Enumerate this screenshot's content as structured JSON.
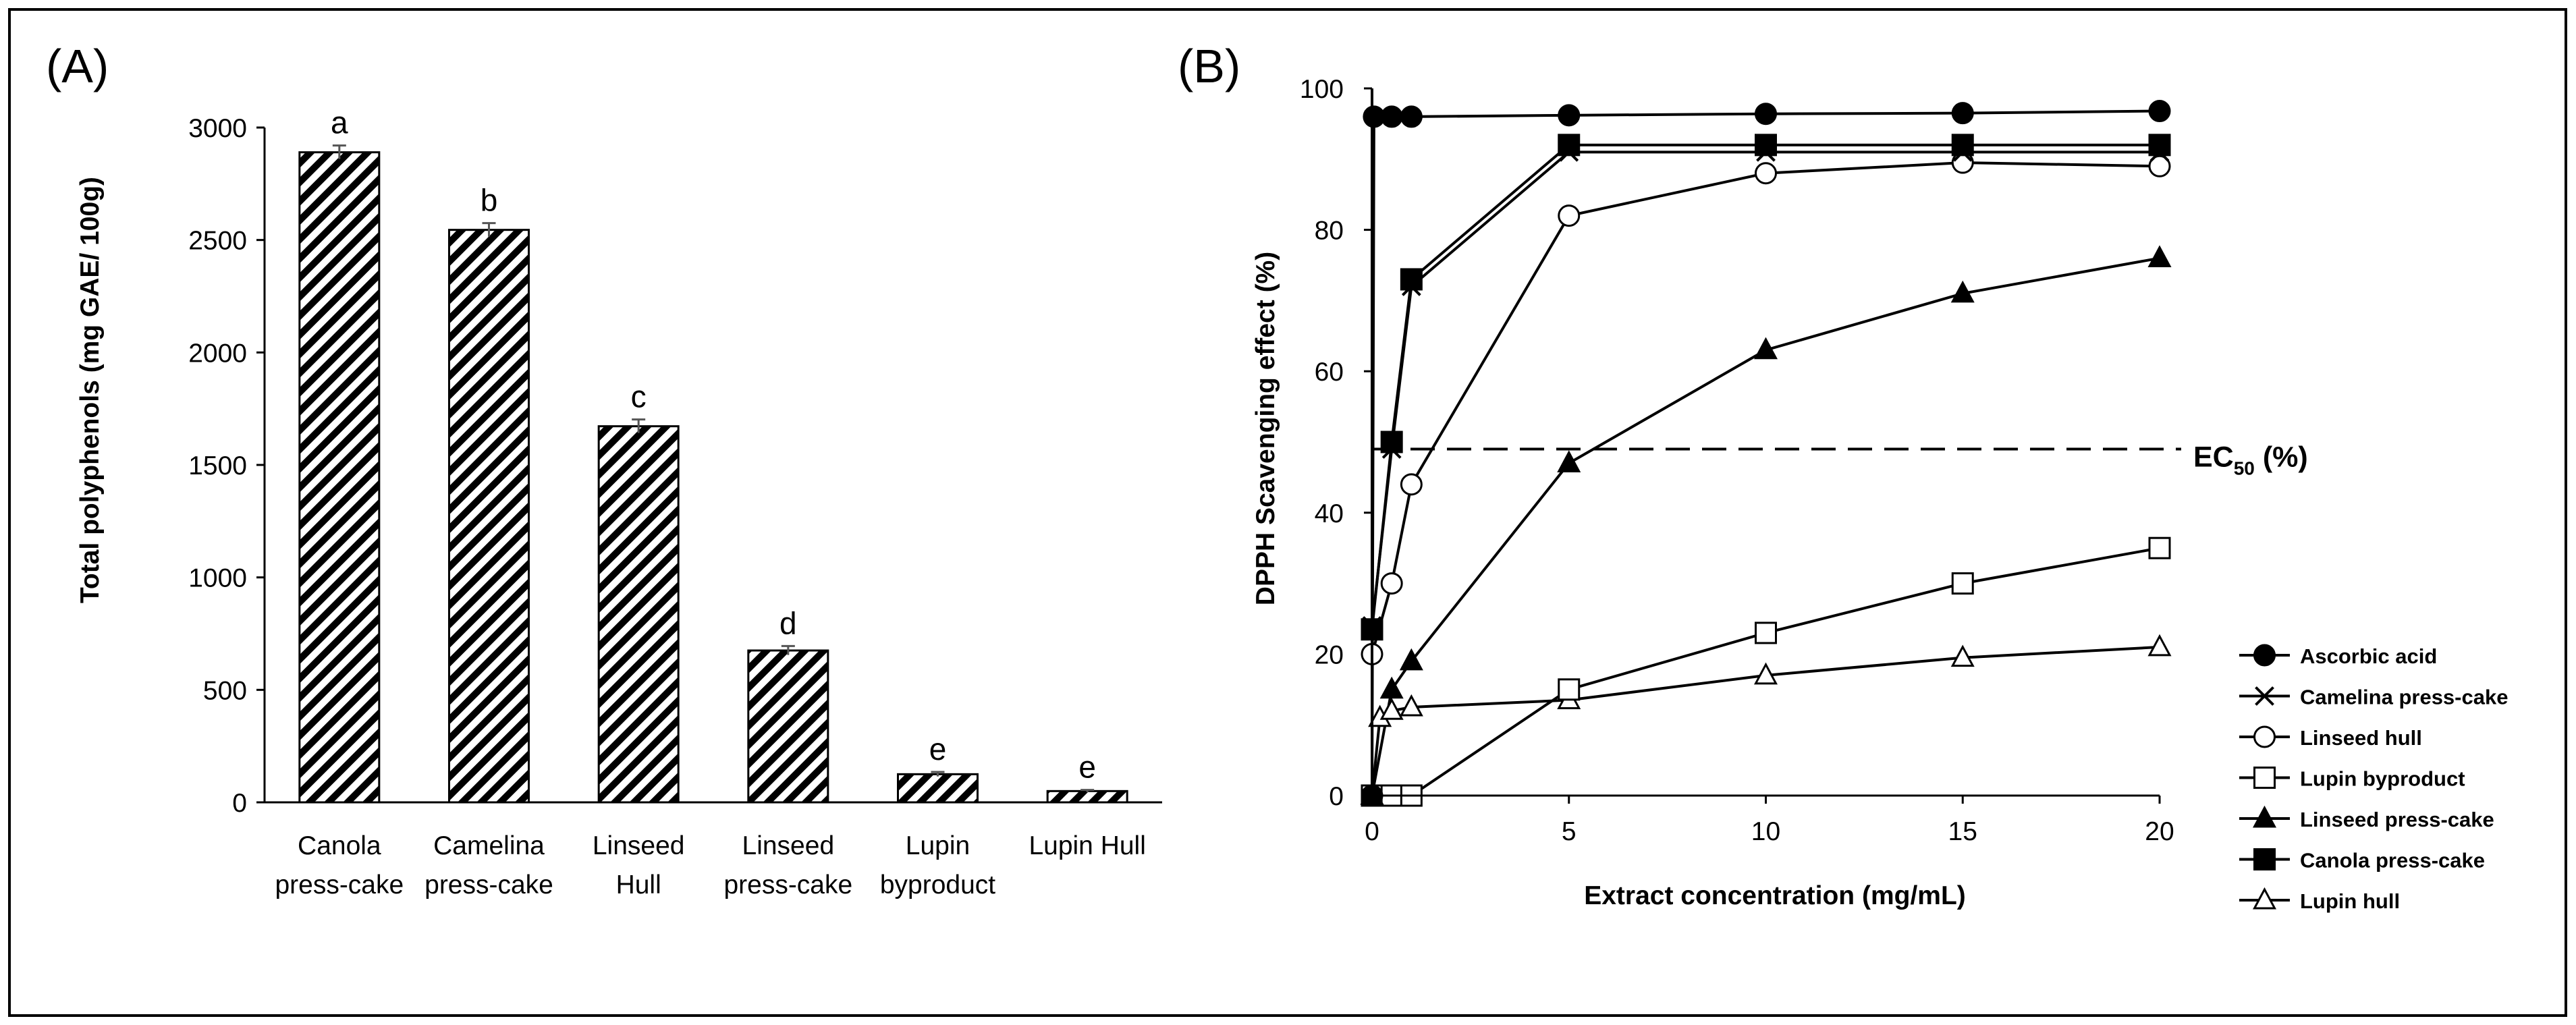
{
  "chart_data": [
    {
      "type": "bar",
      "panel_label": "(A)",
      "categories": [
        [
          "Canola",
          "press-cake"
        ],
        [
          "Camelina",
          "press-cake"
        ],
        [
          "Linseed",
          "Hull"
        ],
        [
          "Linseed",
          "press-cake"
        ],
        [
          "Lupin",
          "byproduct"
        ],
        [
          "Lupin Hull"
        ]
      ],
      "values": [
        2890,
        2545,
        1672,
        675,
        125,
        50
      ],
      "errors": [
        30,
        30,
        30,
        20,
        10,
        5
      ],
      "significance_letters": [
        "a",
        "b",
        "c",
        "d",
        "e",
        "e"
      ],
      "ylabel": "Total polyphenols (mg GAE/ 100g)",
      "xlabel": "",
      "ylim": [
        0,
        3000
      ],
      "yticks": [
        0,
        500,
        1000,
        1500,
        2000,
        2500,
        3000
      ],
      "bar_fill": "diagonal-hatch",
      "colors": {
        "stroke": "#000000",
        "hatch": "#000000",
        "background": "#ffffff"
      }
    },
    {
      "type": "line",
      "panel_label": "(B)",
      "xlabel": "Extract concentration (mg/mL)",
      "ylabel": "DPPH Scavenging effect (%)",
      "xlim": [
        0,
        20
      ],
      "ylim": [
        0,
        100
      ],
      "xticks": [
        0,
        5,
        10,
        15,
        20
      ],
      "yticks": [
        0,
        20,
        40,
        60,
        80,
        100
      ],
      "reference_line": {
        "y": 49,
        "label_main": "EC",
        "label_sub": "50",
        "label_tail": " (%)",
        "style": "dashed"
      },
      "legend_position": "bottom-right",
      "series": [
        {
          "name": "Ascorbic acid",
          "marker": "circle-filled",
          "points": [
            [
              0,
              0
            ],
            [
              0.05,
              96
            ],
            [
              0.5,
              96
            ],
            [
              1,
              96
            ],
            [
              5,
              96.2
            ],
            [
              10,
              96.4
            ],
            [
              15,
              96.5
            ],
            [
              20,
              96.8
            ]
          ]
        },
        {
          "name": "Camelina press-cake",
          "marker": "x",
          "points": [
            [
              0,
              24
            ],
            [
              0.5,
              49
            ],
            [
              1,
              72
            ],
            [
              5,
              91
            ],
            [
              10,
              91
            ],
            [
              15,
              91
            ],
            [
              20,
              91
            ]
          ]
        },
        {
          "name": "Linseed hull",
          "marker": "circle-open",
          "points": [
            [
              0,
              20
            ],
            [
              0.5,
              30
            ],
            [
              1,
              44
            ],
            [
              5,
              82
            ],
            [
              10,
              88
            ],
            [
              15,
              89.5
            ],
            [
              20,
              89
            ]
          ]
        },
        {
          "name": "Lupin byproduct",
          "marker": "square-open",
          "points": [
            [
              0,
              0
            ],
            [
              0.5,
              0
            ],
            [
              1,
              0
            ],
            [
              5,
              15
            ],
            [
              10,
              23
            ],
            [
              15,
              30
            ],
            [
              20,
              35
            ]
          ]
        },
        {
          "name": "Linseed press-cake",
          "marker": "triangle-filled",
          "points": [
            [
              0,
              0
            ],
            [
              0.5,
              15
            ],
            [
              1,
              19
            ],
            [
              5,
              47
            ],
            [
              10,
              63
            ],
            [
              15,
              71
            ],
            [
              20,
              76
            ]
          ]
        },
        {
          "name": "Canola press-cake",
          "marker": "square-filled",
          "points": [
            [
              0,
              23.5
            ],
            [
              0.5,
              50
            ],
            [
              1,
              73
            ],
            [
              5,
              92
            ],
            [
              10,
              92
            ],
            [
              15,
              92
            ],
            [
              20,
              92
            ]
          ]
        },
        {
          "name": "Lupin hull",
          "marker": "triangle-open",
          "points": [
            [
              0,
              0
            ],
            [
              0.2,
              11
            ],
            [
              0.5,
              12
            ],
            [
              1,
              12.5
            ],
            [
              5,
              13.5
            ],
            [
              10,
              17
            ],
            [
              15,
              19.5
            ],
            [
              20,
              21
            ]
          ]
        }
      ]
    }
  ]
}
